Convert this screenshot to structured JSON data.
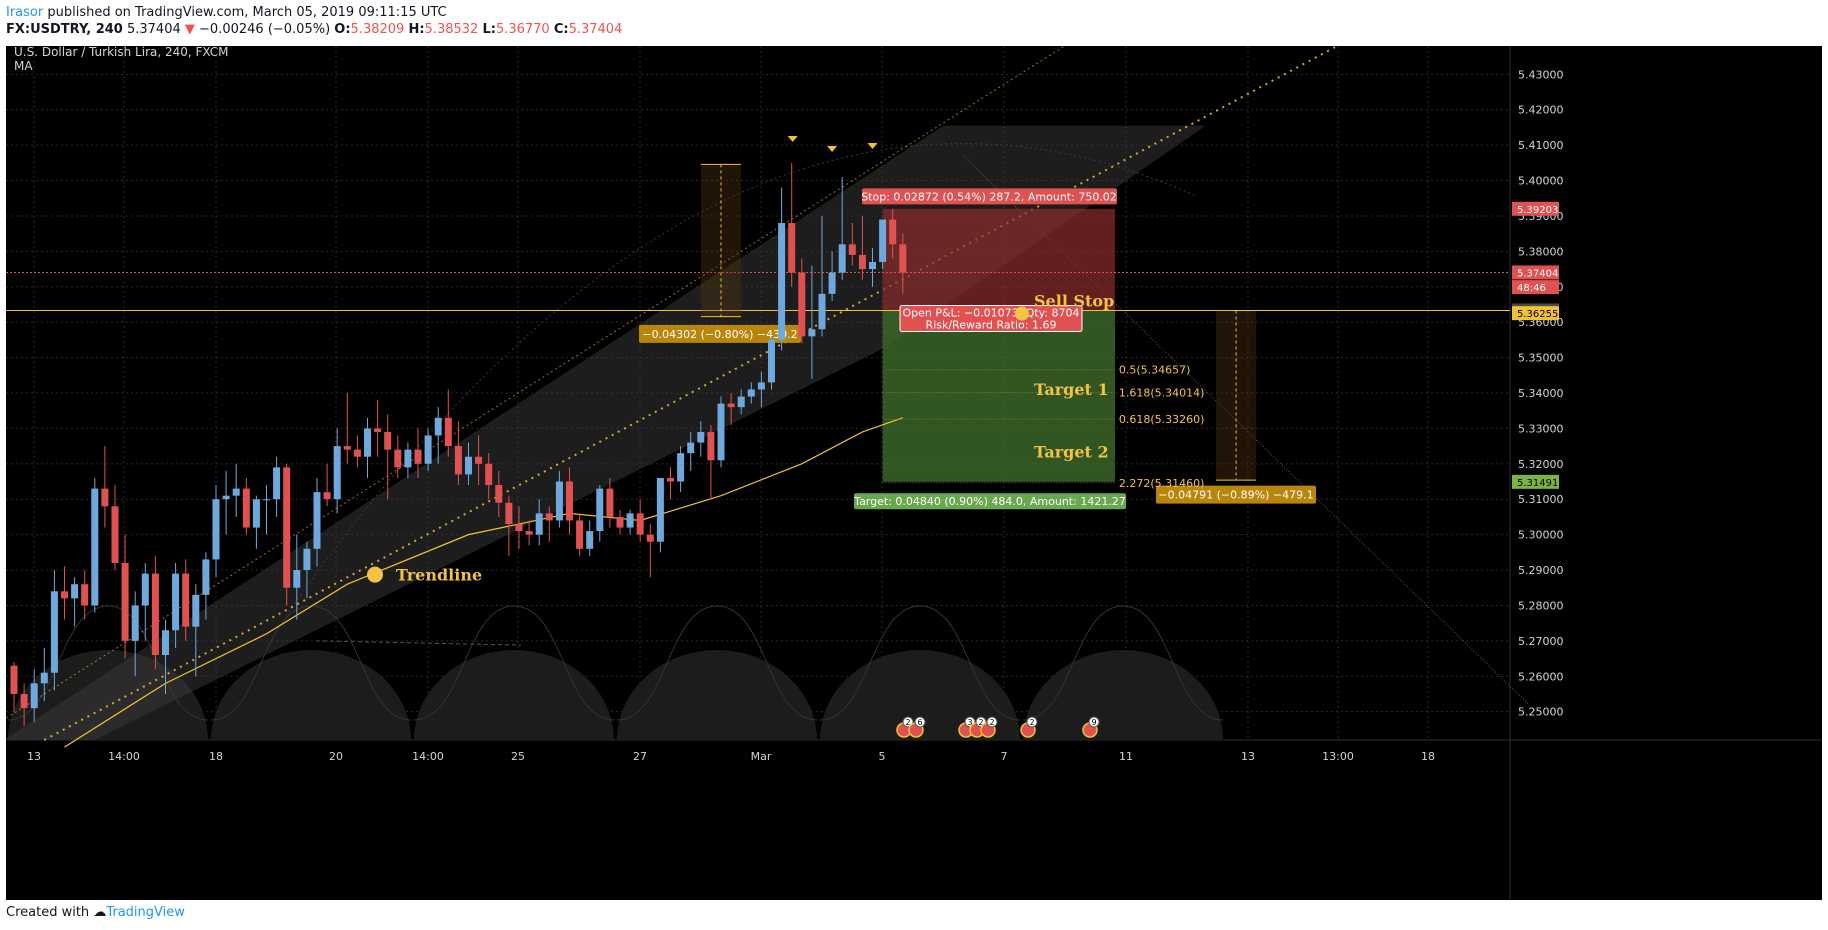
{
  "header": {
    "user": "Irasor",
    "published_text": " published on TradingView.com, March 05, 2019 09:11:15 UTC",
    "symbol": "FX:USDTRY, 240",
    "last": "5.37404",
    "change": "−0.00246 (−0.05%)",
    "o_label": "O:",
    "o": "5.38209",
    "h_label": "H:",
    "h": "5.38532",
    "l_label": "L:",
    "l": "5.36770",
    "c_label": "C:",
    "c": "5.37404"
  },
  "footer": {
    "created_with": "Created with",
    "brand": "TradingView"
  },
  "colors": {
    "background": "#000000",
    "up": "#6fa8dc",
    "down": "#e05252",
    "accent": "#f5c242",
    "stop_zone": "#8b2c2c",
    "target_zone": "#3f6b2b",
    "price_line": "#f2c230"
  },
  "chart_data": {
    "type": "candlestick",
    "symbol_title": "U.S. Dollar / Turkish Lira, 240, FXCM",
    "indicator": "MA",
    "x_tick_labels": [
      "13",
      "14:00",
      "18",
      "20",
      "14:00",
      "25",
      "27",
      "Mar",
      "5",
      "7",
      "11",
      "13",
      "13:00",
      "18"
    ],
    "ylim": [
      5.242,
      5.438
    ],
    "y_tick_labels": [
      "5.43000",
      "5.42000",
      "5.41000",
      "5.40000",
      "5.39000",
      "5.38000",
      "5.37000",
      "5.36000",
      "5.35000",
      "5.34000",
      "5.33000",
      "5.32000",
      "5.31000",
      "5.30000",
      "5.29000",
      "5.28000",
      "5.27000",
      "5.26000",
      "5.25000"
    ],
    "candles": [
      {
        "o": 5.263,
        "h": 5.264,
        "l": 5.25,
        "c": 5.255
      },
      {
        "o": 5.255,
        "h": 5.258,
        "l": 5.246,
        "c": 5.251
      },
      {
        "o": 5.251,
        "h": 5.262,
        "l": 5.247,
        "c": 5.258
      },
      {
        "o": 5.258,
        "h": 5.268,
        "l": 5.253,
        "c": 5.261
      },
      {
        "o": 5.261,
        "h": 5.29,
        "l": 5.256,
        "c": 5.284
      },
      {
        "o": 5.284,
        "h": 5.291,
        "l": 5.276,
        "c": 5.282
      },
      {
        "o": 5.282,
        "h": 5.288,
        "l": 5.274,
        "c": 5.286
      },
      {
        "o": 5.286,
        "h": 5.29,
        "l": 5.276,
        "c": 5.28
      },
      {
        "o": 5.28,
        "h": 5.316,
        "l": 5.278,
        "c": 5.313
      },
      {
        "o": 5.313,
        "h": 5.325,
        "l": 5.302,
        "c": 5.308
      },
      {
        "o": 5.308,
        "h": 5.314,
        "l": 5.29,
        "c": 5.292
      },
      {
        "o": 5.292,
        "h": 5.3,
        "l": 5.265,
        "c": 5.27
      },
      {
        "o": 5.27,
        "h": 5.284,
        "l": 5.26,
        "c": 5.28
      },
      {
        "o": 5.28,
        "h": 5.292,
        "l": 5.27,
        "c": 5.289
      },
      {
        "o": 5.289,
        "h": 5.294,
        "l": 5.262,
        "c": 5.266
      },
      {
        "o": 5.266,
        "h": 5.276,
        "l": 5.255,
        "c": 5.273
      },
      {
        "o": 5.273,
        "h": 5.292,
        "l": 5.268,
        "c": 5.289
      },
      {
        "o": 5.289,
        "h": 5.293,
        "l": 5.27,
        "c": 5.274
      },
      {
        "o": 5.274,
        "h": 5.286,
        "l": 5.26,
        "c": 5.283
      },
      {
        "o": 5.283,
        "h": 5.295,
        "l": 5.276,
        "c": 5.293
      },
      {
        "o": 5.293,
        "h": 5.314,
        "l": 5.288,
        "c": 5.31
      },
      {
        "o": 5.31,
        "h": 5.318,
        "l": 5.3,
        "c": 5.311
      },
      {
        "o": 5.311,
        "h": 5.32,
        "l": 5.305,
        "c": 5.313
      },
      {
        "o": 5.313,
        "h": 5.316,
        "l": 5.3,
        "c": 5.302
      },
      {
        "o": 5.302,
        "h": 5.311,
        "l": 5.296,
        "c": 5.31
      },
      {
        "o": 5.31,
        "h": 5.314,
        "l": 5.3,
        "c": 5.31
      },
      {
        "o": 5.31,
        "h": 5.322,
        "l": 5.305,
        "c": 5.319
      },
      {
        "o": 5.319,
        "h": 5.32,
        "l": 5.28,
        "c": 5.285
      },
      {
        "o": 5.285,
        "h": 5.3,
        "l": 5.276,
        "c": 5.29
      },
      {
        "o": 5.29,
        "h": 5.298,
        "l": 5.282,
        "c": 5.296
      },
      {
        "o": 5.296,
        "h": 5.316,
        "l": 5.291,
        "c": 5.312
      },
      {
        "o": 5.312,
        "h": 5.32,
        "l": 5.308,
        "c": 5.31
      },
      {
        "o": 5.31,
        "h": 5.33,
        "l": 5.306,
        "c": 5.325
      },
      {
        "o": 5.325,
        "h": 5.34,
        "l": 5.32,
        "c": 5.324
      },
      {
        "o": 5.324,
        "h": 5.328,
        "l": 5.319,
        "c": 5.322
      },
      {
        "o": 5.322,
        "h": 5.333,
        "l": 5.316,
        "c": 5.33
      },
      {
        "o": 5.33,
        "h": 5.338,
        "l": 5.322,
        "c": 5.329
      },
      {
        "o": 5.329,
        "h": 5.334,
        "l": 5.31,
        "c": 5.324
      },
      {
        "o": 5.324,
        "h": 5.328,
        "l": 5.316,
        "c": 5.319
      },
      {
        "o": 5.319,
        "h": 5.326,
        "l": 5.316,
        "c": 5.324
      },
      {
        "o": 5.324,
        "h": 5.33,
        "l": 5.316,
        "c": 5.32
      },
      {
        "o": 5.32,
        "h": 5.33,
        "l": 5.318,
        "c": 5.328
      },
      {
        "o": 5.328,
        "h": 5.336,
        "l": 5.32,
        "c": 5.333
      },
      {
        "o": 5.333,
        "h": 5.341,
        "l": 5.322,
        "c": 5.325
      },
      {
        "o": 5.325,
        "h": 5.332,
        "l": 5.314,
        "c": 5.317
      },
      {
        "o": 5.317,
        "h": 5.326,
        "l": 5.314,
        "c": 5.322
      },
      {
        "o": 5.322,
        "h": 5.328,
        "l": 5.314,
        "c": 5.32
      },
      {
        "o": 5.32,
        "h": 5.323,
        "l": 5.31,
        "c": 5.314
      },
      {
        "o": 5.314,
        "h": 5.318,
        "l": 5.305,
        "c": 5.309
      },
      {
        "o": 5.309,
        "h": 5.311,
        "l": 5.294,
        "c": 5.303
      },
      {
        "o": 5.303,
        "h": 5.308,
        "l": 5.296,
        "c": 5.301
      },
      {
        "o": 5.301,
        "h": 5.304,
        "l": 5.297,
        "c": 5.3
      },
      {
        "o": 5.3,
        "h": 5.31,
        "l": 5.297,
        "c": 5.306
      },
      {
        "o": 5.306,
        "h": 5.308,
        "l": 5.298,
        "c": 5.304
      },
      {
        "o": 5.304,
        "h": 5.318,
        "l": 5.302,
        "c": 5.315
      },
      {
        "o": 5.315,
        "h": 5.319,
        "l": 5.3,
        "c": 5.304
      },
      {
        "o": 5.304,
        "h": 5.306,
        "l": 5.294,
        "c": 5.296
      },
      {
        "o": 5.296,
        "h": 5.304,
        "l": 5.294,
        "c": 5.301
      },
      {
        "o": 5.301,
        "h": 5.314,
        "l": 5.298,
        "c": 5.313
      },
      {
        "o": 5.313,
        "h": 5.316,
        "l": 5.302,
        "c": 5.305
      },
      {
        "o": 5.305,
        "h": 5.307,
        "l": 5.3,
        "c": 5.302
      },
      {
        "o": 5.302,
        "h": 5.307,
        "l": 5.3,
        "c": 5.306
      },
      {
        "o": 5.306,
        "h": 5.31,
        "l": 5.298,
        "c": 5.3
      },
      {
        "o": 5.3,
        "h": 5.303,
        "l": 5.288,
        "c": 5.298
      },
      {
        "o": 5.298,
        "h": 5.316,
        "l": 5.295,
        "c": 5.316
      },
      {
        "o": 5.316,
        "h": 5.319,
        "l": 5.31,
        "c": 5.315
      },
      {
        "o": 5.315,
        "h": 5.325,
        "l": 5.312,
        "c": 5.323
      },
      {
        "o": 5.323,
        "h": 5.329,
        "l": 5.318,
        "c": 5.326
      },
      {
        "o": 5.326,
        "h": 5.332,
        "l": 5.322,
        "c": 5.329
      },
      {
        "o": 5.329,
        "h": 5.331,
        "l": 5.31,
        "c": 5.321
      },
      {
        "o": 5.321,
        "h": 5.339,
        "l": 5.319,
        "c": 5.337
      },
      {
        "o": 5.337,
        "h": 5.34,
        "l": 5.331,
        "c": 5.336
      },
      {
        "o": 5.336,
        "h": 5.341,
        "l": 5.334,
        "c": 5.339
      },
      {
        "o": 5.339,
        "h": 5.343,
        "l": 5.337,
        "c": 5.341
      },
      {
        "o": 5.341,
        "h": 5.346,
        "l": 5.336,
        "c": 5.343
      },
      {
        "o": 5.343,
        "h": 5.356,
        "l": 5.341,
        "c": 5.355
      },
      {
        "o": 5.355,
        "h": 5.398,
        "l": 5.352,
        "c": 5.388
      },
      {
        "o": 5.388,
        "h": 5.405,
        "l": 5.37,
        "c": 5.374
      },
      {
        "o": 5.374,
        "h": 5.378,
        "l": 5.354,
        "c": 5.356
      },
      {
        "o": 5.356,
        "h": 5.376,
        "l": 5.344,
        "c": 5.358
      },
      {
        "o": 5.358,
        "h": 5.39,
        "l": 5.356,
        "c": 5.368
      },
      {
        "o": 5.368,
        "h": 5.38,
        "l": 5.366,
        "c": 5.374
      },
      {
        "o": 5.374,
        "h": 5.401,
        "l": 5.372,
        "c": 5.382
      },
      {
        "o": 5.382,
        "h": 5.388,
        "l": 5.376,
        "c": 5.379
      },
      {
        "o": 5.379,
        "h": 5.39,
        "l": 5.372,
        "c": 5.375
      },
      {
        "o": 5.375,
        "h": 5.381,
        "l": 5.37,
        "c": 5.377
      },
      {
        "o": 5.377,
        "h": 5.389,
        "l": 5.375,
        "c": 5.389
      },
      {
        "o": 5.389,
        "h": 5.392,
        "l": 5.378,
        "c": 5.382
      },
      {
        "o": 5.382,
        "h": 5.385,
        "l": 5.368,
        "c": 5.374
      }
    ],
    "moving_average": [
      {
        "i": 5,
        "v": 5.24
      },
      {
        "i": 15,
        "v": 5.258
      },
      {
        "i": 25,
        "v": 5.272
      },
      {
        "i": 33,
        "v": 5.286
      },
      {
        "i": 45,
        "v": 5.3
      },
      {
        "i": 55,
        "v": 5.306
      },
      {
        "i": 62,
        "v": 5.304
      },
      {
        "i": 70,
        "v": 5.311
      },
      {
        "i": 78,
        "v": 5.32
      },
      {
        "i": 84,
        "v": 5.329
      },
      {
        "i": 88,
        "v": 5.333
      }
    ],
    "horizontal_lines": [
      {
        "price": 5.37404,
        "style": "dotted-red"
      },
      {
        "price": 5.36331,
        "style": "solid-yellow"
      }
    ],
    "price_axis_tags": [
      {
        "label": "5.39203",
        "price": 5.39203,
        "color": "#e05252",
        "text_color": "#ffffff"
      },
      {
        "label": "5.37404",
        "price": 5.37404,
        "color": "#e05252",
        "text_color": "#ffffff"
      },
      {
        "label": "48:46",
        "price": 5.3699,
        "color": "#e05252",
        "text_color": "#ffffff"
      },
      {
        "label": "5.36331",
        "price": 5.36331,
        "color": "#4a4a4a",
        "text_color": "#ffffff"
      },
      {
        "label": "5.36255",
        "price": 5.36255,
        "color": "#f2c230",
        "text_color": "#000000"
      },
      {
        "label": "5.31491",
        "price": 5.31491,
        "color": "#7cb342",
        "text_color": "#000000"
      }
    ],
    "position": {
      "entry": 5.36331,
      "stop": 5.39203,
      "target": 5.31491,
      "start_index": 86,
      "end_index": 109,
      "stop_label": "Stop: 0.02872 (0.54%) 287.2, Amount: 750.02",
      "target_label": "Target: 0.04840 (0.90%) 484.0, Amount: 1421.27",
      "pnl_label": "Open P&L: −0.01073, Qty: 8704",
      "rr_label": "Risk/Reward Ratio: 1.69"
    },
    "fib_levels": [
      {
        "label": "0.5(5.34657)",
        "price": 5.34657
      },
      {
        "label": "1.618(5.34014)",
        "price": 5.34014
      },
      {
        "label": "0.618(5.33260)",
        "price": 5.3326
      },
      {
        "label": "2.272(5.31460)",
        "price": 5.3146
      }
    ],
    "annotations": {
      "sell_stop": "Sell Stop",
      "target1": "Target 1",
      "target2": "Target 2",
      "trendline": "Trendline"
    },
    "measure_boxes": [
      {
        "label": "−0.04302 (−0.80%) −430.2",
        "from": 5.40458,
        "to": 5.36156,
        "index": 70
      },
      {
        "label": "−0.04791 (−0.89%) −479.1",
        "from": 5.36331,
        "to": 5.3154,
        "index": 121
      }
    ],
    "event_badges": [
      "2",
      "6",
      "3",
      "2",
      "2",
      "2",
      "9"
    ]
  }
}
